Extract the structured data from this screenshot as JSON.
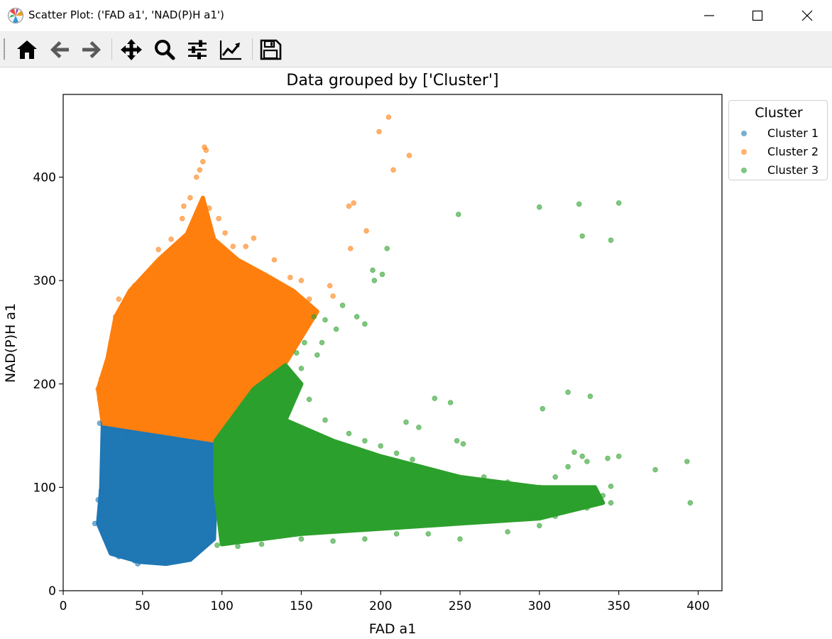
{
  "window": {
    "title": "Scatter Plot: ('FAD a1', 'NAD(P)H a1')",
    "controls": [
      "minimize-icon",
      "maximize-icon",
      "close-icon"
    ]
  },
  "toolbar": {
    "buttons": [
      {
        "name": "home",
        "icon": "home-icon"
      },
      {
        "name": "back",
        "icon": "arrow-left-icon"
      },
      {
        "name": "forward",
        "icon": "arrow-right-icon"
      },
      {
        "name": "pan",
        "icon": "move-icon"
      },
      {
        "name": "zoom",
        "icon": "magnifier-icon"
      },
      {
        "name": "subplots",
        "icon": "sliders-icon"
      },
      {
        "name": "edit-axes",
        "icon": "line-chart-icon"
      },
      {
        "name": "save",
        "icon": "floppy-disk-icon"
      }
    ]
  },
  "chart_data": {
    "type": "scatter",
    "title": "Data grouped by ['Cluster']",
    "xlabel": "FAD a1",
    "ylabel": "NAD(P)H a1",
    "xlim": [
      0,
      415
    ],
    "ylim": [
      0,
      480
    ],
    "xticks": [
      0,
      50,
      100,
      150,
      200,
      250,
      300,
      350,
      400
    ],
    "yticks": [
      0,
      100,
      200,
      300,
      400
    ],
    "grid": false,
    "legend": {
      "title": "Cluster",
      "position": "outside-top-right"
    },
    "series": [
      {
        "name": "Cluster 1",
        "color": "#1f77b4",
        "region_polygon": [
          [
            22,
            65
          ],
          [
            24,
            100
          ],
          [
            25,
            162
          ],
          [
            95,
            145
          ],
          [
            96,
            95
          ],
          [
            95,
            50
          ],
          [
            80,
            30
          ],
          [
            65,
            26
          ],
          [
            48,
            28
          ],
          [
            30,
            36
          ]
        ],
        "points": [
          [
            20,
            65
          ],
          [
            23,
            73
          ],
          [
            24,
            97
          ],
          [
            23,
            162
          ],
          [
            26,
            145
          ],
          [
            31,
            40
          ],
          [
            35,
            33
          ],
          [
            45,
            29
          ],
          [
            47,
            26
          ],
          [
            55,
            28
          ],
          [
            65,
            27
          ],
          [
            70,
            29
          ],
          [
            80,
            32
          ],
          [
            86,
            40
          ],
          [
            93,
            52
          ],
          [
            22,
            88
          ],
          [
            40,
            150
          ],
          [
            60,
            140
          ]
        ]
      },
      {
        "name": "Cluster 2",
        "color": "#ff7f0e",
        "region_polygon": [
          [
            25,
            162
          ],
          [
            22,
            195
          ],
          [
            28,
            225
          ],
          [
            33,
            265
          ],
          [
            42,
            290
          ],
          [
            60,
            320
          ],
          [
            78,
            345
          ],
          [
            88,
            380
          ],
          [
            95,
            340
          ],
          [
            110,
            320
          ],
          [
            128,
            305
          ],
          [
            145,
            290
          ],
          [
            160,
            270
          ],
          [
            150,
            245
          ],
          [
            140,
            220
          ],
          [
            120,
            195
          ],
          [
            96,
            145
          ]
        ],
        "points": [
          [
            89,
            429
          ],
          [
            90,
            426
          ],
          [
            88,
            415
          ],
          [
            86,
            407
          ],
          [
            84,
            400
          ],
          [
            80,
            380
          ],
          [
            76,
            372
          ],
          [
            75,
            360
          ],
          [
            68,
            340
          ],
          [
            60,
            330
          ],
          [
            92,
            370
          ],
          [
            98,
            360
          ],
          [
            102,
            346
          ],
          [
            107,
            333
          ],
          [
            115,
            333
          ],
          [
            120,
            341
          ],
          [
            133,
            320
          ],
          [
            143,
            303
          ],
          [
            150,
            300
          ],
          [
            155,
            282
          ],
          [
            159,
            270
          ],
          [
            168,
            295
          ],
          [
            170,
            285
          ],
          [
            180,
            372
          ],
          [
            183,
            375
          ],
          [
            191,
            348
          ],
          [
            181,
            331
          ],
          [
            199,
            444
          ],
          [
            205,
            458
          ],
          [
            208,
            407
          ],
          [
            218,
            421
          ],
          [
            22,
            195
          ],
          [
            24,
            205
          ],
          [
            23,
            185
          ],
          [
            30,
            240
          ],
          [
            33,
            265
          ],
          [
            35,
            282
          ],
          [
            40,
            282
          ],
          [
            45,
            295
          ],
          [
            52,
            300
          ],
          [
            64,
            313
          ],
          [
            155,
            265
          ]
        ]
      },
      {
        "name": "Cluster 3",
        "color": "#2ca02c",
        "region_polygon": [
          [
            96,
            145
          ],
          [
            120,
            195
          ],
          [
            140,
            218
          ],
          [
            150,
            200
          ],
          [
            140,
            165
          ],
          [
            170,
            145
          ],
          [
            200,
            130
          ],
          [
            250,
            110
          ],
          [
            300,
            100
          ],
          [
            335,
            100
          ],
          [
            340,
            85
          ],
          [
            300,
            70
          ],
          [
            250,
            65
          ],
          [
            200,
            60
          ],
          [
            150,
            55
          ],
          [
            100,
            45
          ],
          [
            96,
            95
          ]
        ],
        "points": [
          [
            97,
            44
          ],
          [
            110,
            43
          ],
          [
            125,
            45
          ],
          [
            150,
            50
          ],
          [
            170,
            48
          ],
          [
            190,
            50
          ],
          [
            210,
            55
          ],
          [
            230,
            55
          ],
          [
            250,
            50
          ],
          [
            280,
            57
          ],
          [
            300,
            63
          ],
          [
            310,
            72
          ],
          [
            320,
            80
          ],
          [
            330,
            80
          ],
          [
            345,
            85
          ],
          [
            340,
            92
          ],
          [
            345,
            101
          ],
          [
            350,
            130
          ],
          [
            343,
            128
          ],
          [
            330,
            125
          ],
          [
            322,
            134
          ],
          [
            327,
            130
          ],
          [
            318,
            120
          ],
          [
            310,
            110
          ],
          [
            300,
            100
          ],
          [
            280,
            105
          ],
          [
            265,
            110
          ],
          [
            250,
            98
          ],
          [
            240,
            108
          ],
          [
            230,
            117
          ],
          [
            220,
            127
          ],
          [
            210,
            133
          ],
          [
            200,
            140
          ],
          [
            190,
            145
          ],
          [
            180,
            152
          ],
          [
            165,
            165
          ],
          [
            155,
            185
          ],
          [
            150,
            215
          ],
          [
            147,
            230
          ],
          [
            152,
            240
          ],
          [
            158,
            265
          ],
          [
            165,
            262
          ],
          [
            172,
            253
          ],
          [
            176,
            276
          ],
          [
            185,
            265
          ],
          [
            190,
            258
          ],
          [
            195,
            310
          ],
          [
            196,
            300
          ],
          [
            201,
            306
          ],
          [
            204,
            331
          ],
          [
            249,
            364
          ],
          [
            300,
            371
          ],
          [
            325,
            374
          ],
          [
            327,
            343
          ],
          [
            345,
            339
          ],
          [
            350,
            375
          ],
          [
            318,
            192
          ],
          [
            332,
            188
          ],
          [
            302,
            176
          ],
          [
            234,
            186
          ],
          [
            244,
            182
          ],
          [
            216,
            163
          ],
          [
            224,
            158
          ],
          [
            248,
            145
          ],
          [
            252,
            142
          ],
          [
            373,
            117
          ],
          [
            393,
            125
          ],
          [
            395,
            85
          ],
          [
            160,
            228
          ],
          [
            163,
            240
          ]
        ]
      }
    ]
  }
}
